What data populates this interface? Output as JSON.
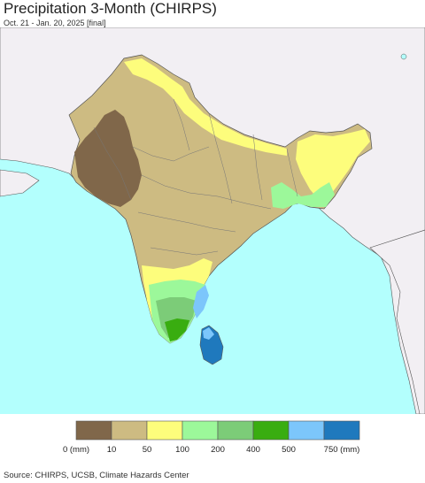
{
  "header": {
    "title": "Precipitation 3-Month (CHIRPS)",
    "subtitle": "Oct. 21 - Jan. 20, 2025 [final]"
  },
  "legend": {
    "colors": [
      "#80674a",
      "#cdbb82",
      "#fdfd7c",
      "#9cf89a",
      "#7ccc78",
      "#39ad10",
      "#7cc6fb",
      "#1f79bd"
    ],
    "labels": [
      "0 (mm)",
      "10",
      "50",
      "100",
      "200",
      "400",
      "500",
      "750 (mm)"
    ]
  },
  "map_colors": {
    "ocean": "#b3fffd",
    "outside_land": "#f2eff3",
    "border": "#555555"
  },
  "footer": {
    "credit": "Source: CHIRPS, UCSB, Climate Hazards Center"
  }
}
